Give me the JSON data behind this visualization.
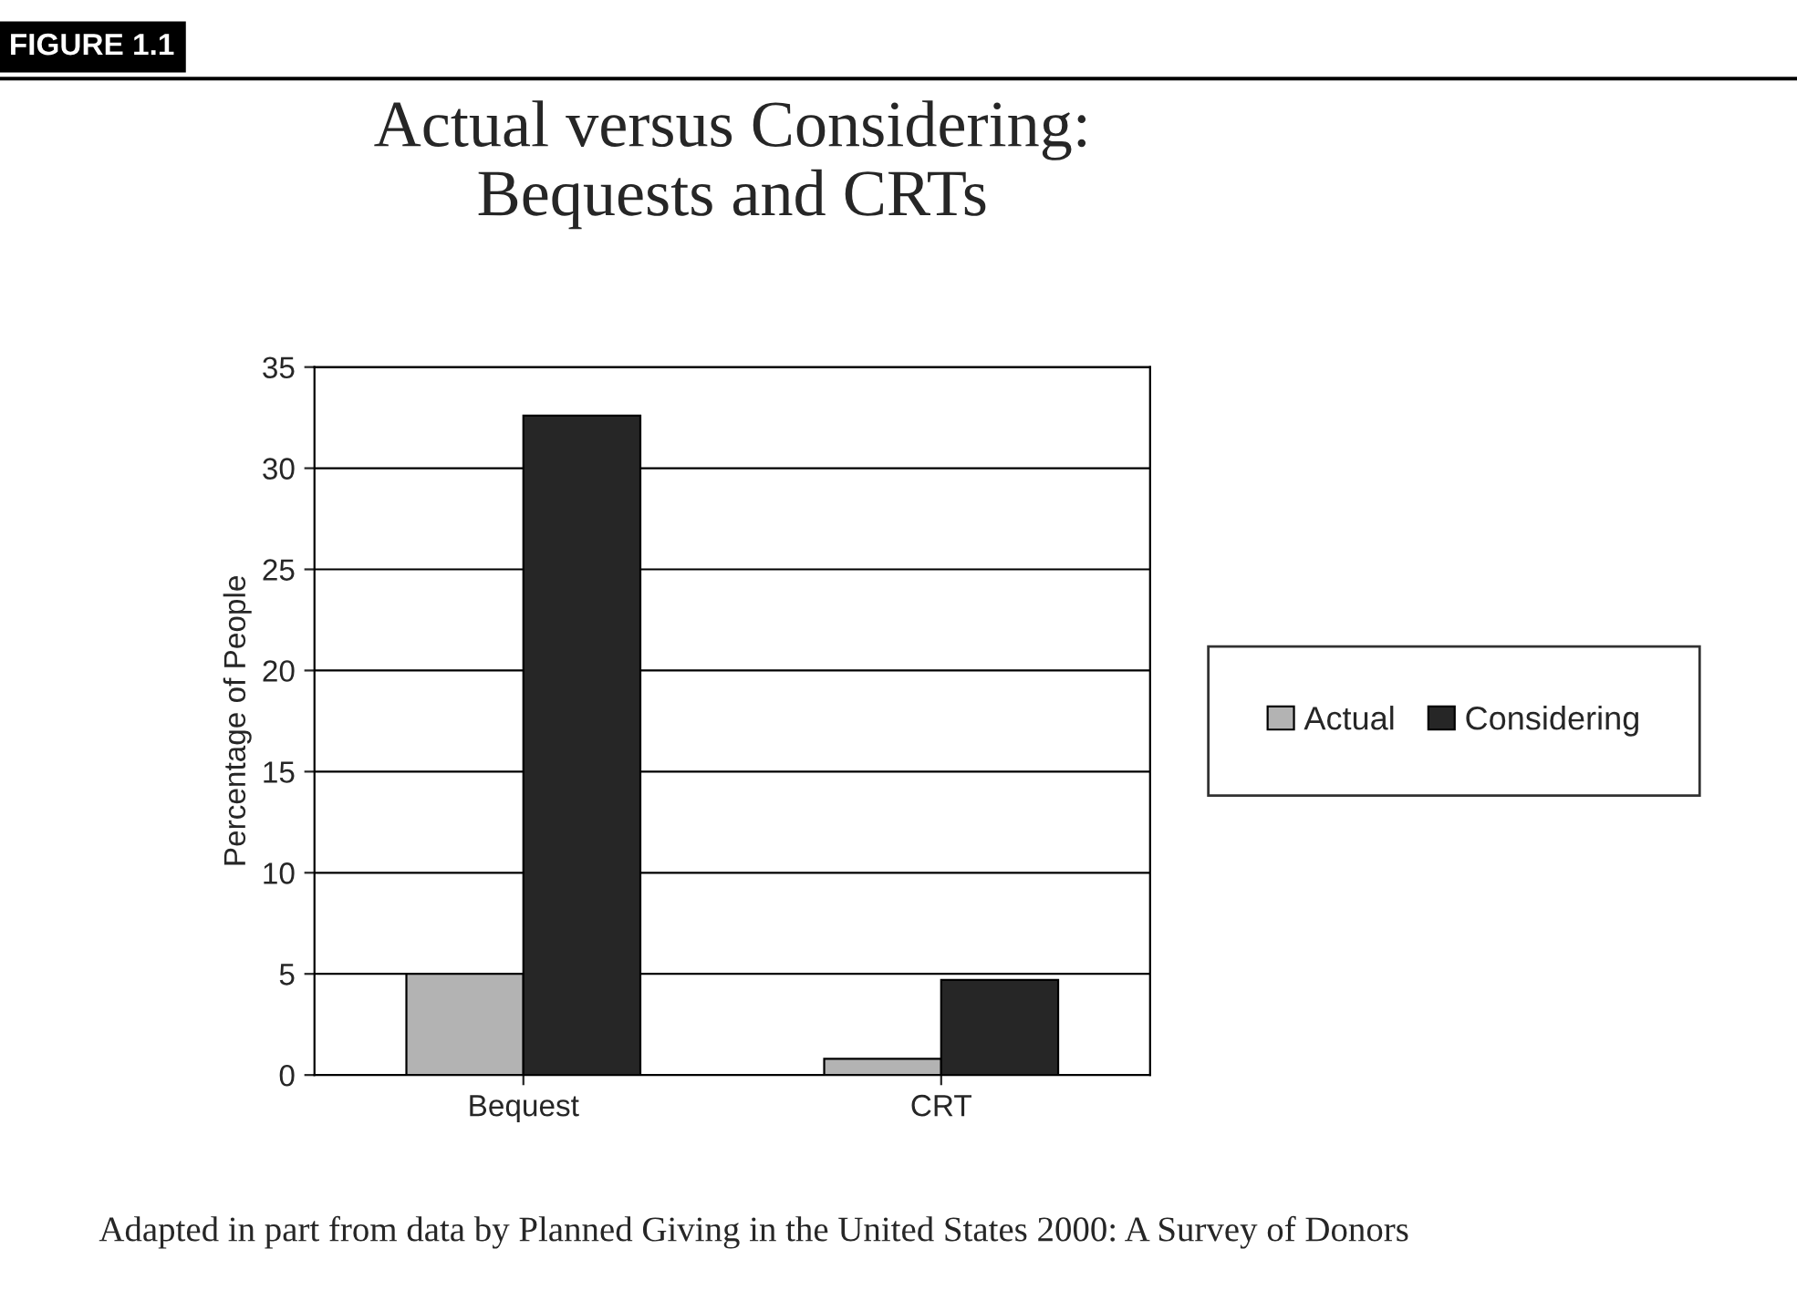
{
  "chart_data": {
    "type": "bar",
    "title": "Actual versus Considering:\nBequests and CRTs",
    "ylabel": "Percentage of People",
    "categories": [
      "Bequest",
      "CRT"
    ],
    "series": [
      {
        "name": "Actual",
        "color": "#b3b3b3",
        "values": [
          5,
          0.8
        ]
      },
      {
        "name": "Considering",
        "color": "#262626",
        "values": [
          32.6,
          4.7
        ]
      }
    ],
    "ylim": [
      0,
      35
    ],
    "yticks": [
      0,
      5,
      10,
      15,
      20,
      25,
      30,
      35
    ],
    "grid": "y",
    "legend": "right",
    "annotations": [
      "FIGURE 1.1",
      "Adapted in part from data by Planned Giving in the United States 2000: A Survey of Donors"
    ]
  }
}
